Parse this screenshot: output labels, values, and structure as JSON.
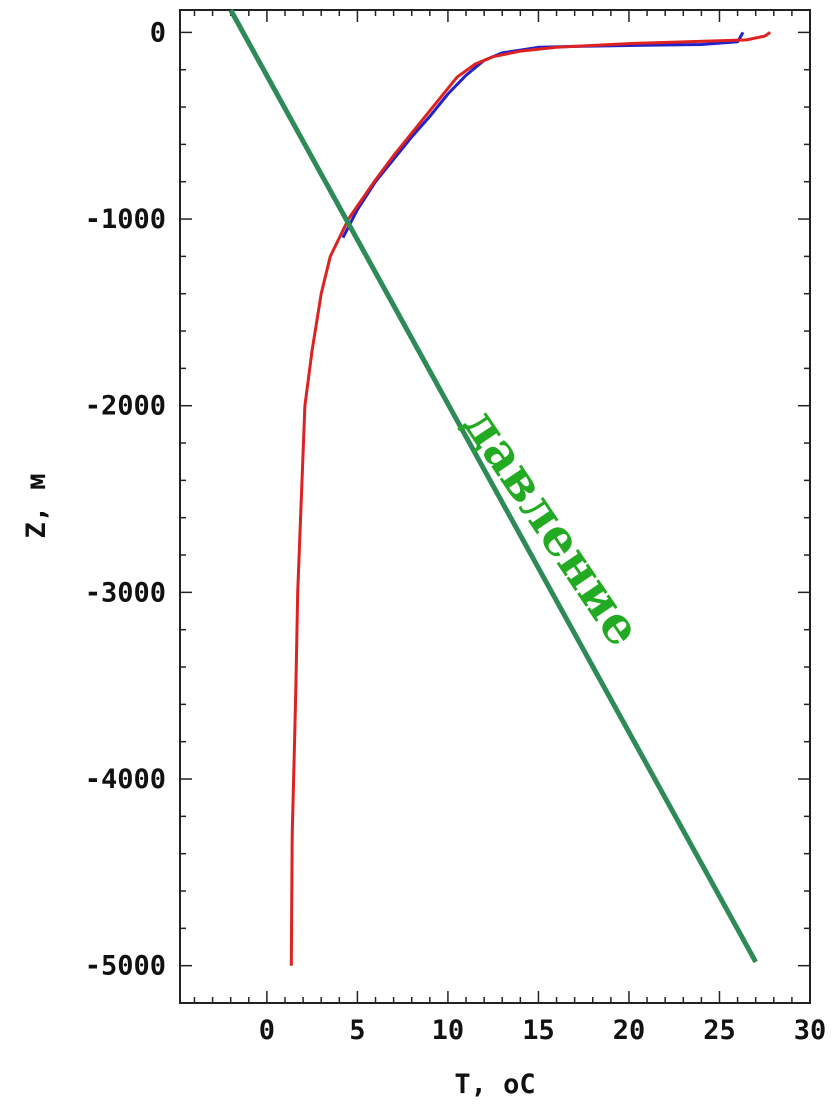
{
  "chart_data": {
    "type": "line",
    "title": "",
    "xlabel": "T, oC",
    "ylabel": "Z, м",
    "xlim": [
      -4.8,
      30
    ],
    "ylim": [
      -5200,
      120
    ],
    "xticks": [
      0,
      5,
      10,
      15,
      20,
      25,
      30
    ],
    "yticks": [
      0,
      -1000,
      -2000,
      -3000,
      -4000,
      -5000
    ],
    "xtick_labels": [
      "0",
      "5",
      "10",
      "15",
      "20",
      "25",
      "30"
    ],
    "ytick_labels": [
      "0",
      "-1000",
      "-2000",
      "-3000",
      "-4000",
      "-5000"
    ],
    "grid": false,
    "legend": "none",
    "series": [
      {
        "color": "#2222cc",
        "points": [
          [
            26.3,
            0
          ],
          [
            26.0,
            -50
          ],
          [
            24,
            -65
          ],
          [
            20,
            -70
          ],
          [
            17,
            -75
          ],
          [
            15,
            -80
          ],
          [
            13,
            -110
          ],
          [
            12,
            -150
          ],
          [
            11,
            -230
          ],
          [
            10,
            -330
          ],
          [
            9,
            -450
          ],
          [
            8,
            -560
          ],
          [
            7,
            -680
          ],
          [
            6,
            -800
          ],
          [
            5,
            -950
          ],
          [
            4.2,
            -1100
          ]
        ]
      },
      {
        "color": "#dd2222",
        "points": [
          [
            27.8,
            0
          ],
          [
            27.5,
            -20
          ],
          [
            26.5,
            -40
          ],
          [
            25,
            -45
          ],
          [
            20,
            -60
          ],
          [
            16,
            -80
          ],
          [
            14,
            -100
          ],
          [
            12.5,
            -130
          ],
          [
            11.5,
            -170
          ],
          [
            10.5,
            -240
          ],
          [
            10,
            -300
          ],
          [
            9,
            -420
          ],
          [
            8,
            -540
          ],
          [
            7,
            -660
          ],
          [
            6,
            -790
          ],
          [
            5,
            -930
          ],
          [
            4.5,
            -1000
          ],
          [
            3.5,
            -1200
          ],
          [
            3.0,
            -1400
          ],
          [
            2.5,
            -1700
          ],
          [
            2.1,
            -2000
          ],
          [
            1.9,
            -2500
          ],
          [
            1.7,
            -3000
          ],
          [
            1.6,
            -3500
          ],
          [
            1.5,
            -3900
          ],
          [
            1.4,
            -4300
          ],
          [
            1.35,
            -5000
          ]
        ]
      }
    ],
    "overlay_line": {
      "color": "#2e8b57",
      "from": [
        -2.0,
        120
      ],
      "to": [
        27.0,
        -4980
      ]
    },
    "annotation": {
      "text": "давление",
      "color": "#22aa22",
      "at": [
        15.0,
        -2700
      ],
      "angle_deg": 56
    }
  }
}
